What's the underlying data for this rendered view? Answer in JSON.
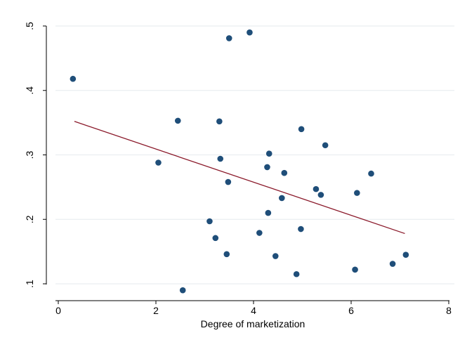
{
  "chart_data": {
    "type": "scatter",
    "title": "",
    "xlabel": "Degree of marketization",
    "ylabel": "",
    "xlim": [
      0,
      8
    ],
    "ylim": [
      0.1,
      0.5
    ],
    "xticks": [
      0,
      2,
      4,
      6,
      8
    ],
    "yticks": [
      0.1,
      0.2,
      0.3,
      0.4,
      0.5
    ],
    "xtick_labels": [
      "0",
      "2",
      "4",
      "6",
      "8"
    ],
    "ytick_labels": [
      ".1",
      ".2",
      ".3",
      ".4",
      ".5"
    ],
    "grid": true,
    "legend": "none",
    "colors": {
      "points": "#1f4e79",
      "fit_line": "#8b1a2b",
      "grid": "#e6eaee",
      "axis": "#000000"
    },
    "series": [
      {
        "type": "scatter",
        "x": [
          0.3,
          2.05,
          2.45,
          2.55,
          3.1,
          3.22,
          3.3,
          3.32,
          3.45,
          3.48,
          3.5,
          3.92,
          4.12,
          4.28,
          4.3,
          4.32,
          4.45,
          4.58,
          4.63,
          4.88,
          4.97,
          4.98,
          5.28,
          5.38,
          5.47,
          6.08,
          6.12,
          6.41,
          6.85,
          7.12
        ],
        "y": [
          0.418,
          0.288,
          0.353,
          0.09,
          0.197,
          0.171,
          0.352,
          0.294,
          0.146,
          0.258,
          0.481,
          0.49,
          0.179,
          0.281,
          0.21,
          0.302,
          0.143,
          0.233,
          0.272,
          0.115,
          0.185,
          0.34,
          0.247,
          0.238,
          0.315,
          0.122,
          0.241,
          0.271,
          0.131,
          0.145
        ]
      },
      {
        "type": "line",
        "x": [
          0.33,
          7.1
        ],
        "y": [
          0.352,
          0.178
        ]
      }
    ]
  }
}
